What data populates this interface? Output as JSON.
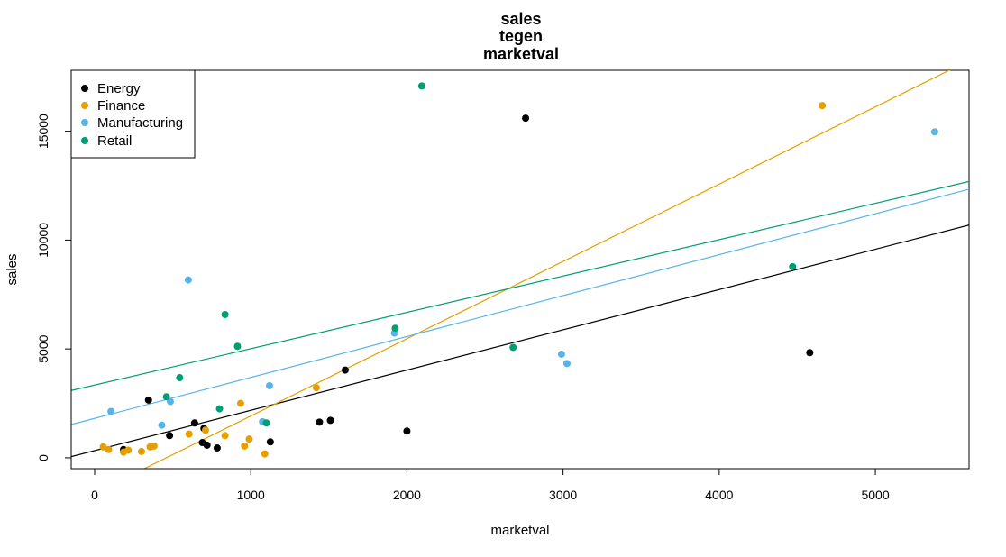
{
  "chart_data": {
    "type": "scatter",
    "title": [
      "sales",
      "tegen",
      "marketval"
    ],
    "xlabel": "marketval",
    "ylabel": "sales",
    "xlim": [
      -150,
      5600
    ],
    "ylim": [
      -500,
      17800
    ],
    "xticks": [
      0,
      1000,
      2000,
      3000,
      4000,
      5000
    ],
    "yticks": [
      0,
      5000,
      10000,
      15000
    ],
    "grid": false,
    "legend_position": "top-left",
    "series": [
      {
        "name": "Energy",
        "color": "#000000",
        "points": [
          [
            185,
            380
          ],
          [
            345,
            2650
          ],
          [
            480,
            1020
          ],
          [
            640,
            1600
          ],
          [
            690,
            700
          ],
          [
            700,
            1350
          ],
          [
            720,
            580
          ],
          [
            785,
            450
          ],
          [
            1125,
            730
          ],
          [
            1440,
            1640
          ],
          [
            1510,
            1720
          ],
          [
            1605,
            4030
          ],
          [
            2000,
            1230
          ],
          [
            2760,
            15600
          ],
          [
            4580,
            4830
          ]
        ],
        "fit": {
          "intercept": 330,
          "slope": 1.85
        }
      },
      {
        "name": "Finance",
        "color": "#E69F00",
        "points": [
          [
            55,
            500
          ],
          [
            90,
            380
          ],
          [
            185,
            260
          ],
          [
            215,
            350
          ],
          [
            300,
            290
          ],
          [
            355,
            500
          ],
          [
            380,
            540
          ],
          [
            605,
            1090
          ],
          [
            710,
            1270
          ],
          [
            835,
            1020
          ],
          [
            935,
            2500
          ],
          [
            960,
            540
          ],
          [
            990,
            860
          ],
          [
            1090,
            180
          ],
          [
            1420,
            3220
          ],
          [
            4660,
            16180
          ]
        ],
        "fit": {
          "intercept": -1630,
          "slope": 3.55
        }
      },
      {
        "name": "Manufacturing",
        "color": "#56B4E9",
        "points": [
          [
            105,
            2130
          ],
          [
            430,
            1500
          ],
          [
            485,
            2580
          ],
          [
            600,
            8170
          ],
          [
            1075,
            1660
          ],
          [
            1120,
            3310
          ],
          [
            1920,
            5730
          ],
          [
            2990,
            4760
          ],
          [
            3025,
            4330
          ],
          [
            5380,
            14970
          ]
        ],
        "fit": {
          "intercept": 1810,
          "slope": 1.88
        }
      },
      {
        "name": "Retail",
        "color": "#009E73",
        "points": [
          [
            460,
            2800
          ],
          [
            545,
            3680
          ],
          [
            800,
            2250
          ],
          [
            835,
            6580
          ],
          [
            915,
            5120
          ],
          [
            1100,
            1600
          ],
          [
            1925,
            5950
          ],
          [
            2095,
            17080
          ],
          [
            2680,
            5070
          ],
          [
            4470,
            8780
          ]
        ],
        "fit": {
          "intercept": 3340,
          "slope": 1.67
        }
      }
    ]
  }
}
